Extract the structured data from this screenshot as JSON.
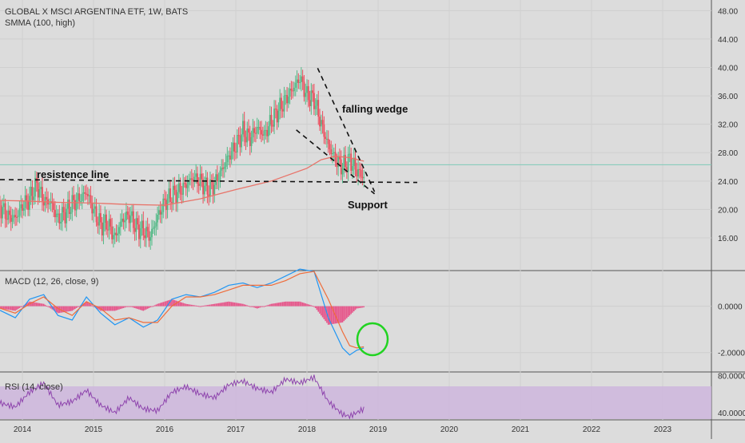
{
  "header": {
    "symbol": "GLOBAL X MSCI ARGENTINA ETF, 1W, BATS",
    "study": "SMMA (100, high)"
  },
  "macd_panel": {
    "label": "MACD (12, 26, close, 9)"
  },
  "rsi_panel": {
    "label": "RSI (14, close)"
  },
  "annotations": {
    "wedge": "falling wedge",
    "resistance": "resistence line",
    "support": "Support"
  },
  "colors": {
    "background": "#dcdcdc",
    "up_candle": "#53b987",
    "down_candle": "#eb4d5c",
    "smma": "#e8746a",
    "macd_line": "#2196f3",
    "signal_line": "#ef6c3a",
    "histogram": "#e6558a",
    "rsi_line": "#8e44ad",
    "rsi_band": "#cdb4dd",
    "trendline": "#111111",
    "circle": "#22d322",
    "price_line": "#7fc9b8"
  },
  "chart_data": [
    {
      "type": "candlestick",
      "panel": "price",
      "x_ticks": [
        "2014",
        "2015",
        "2016",
        "2017",
        "2018",
        "2019",
        "2020",
        "2021",
        "2022",
        "2023"
      ],
      "y_ticks": [
        "16.00",
        "20.00",
        "24.00",
        "28.00",
        "32.00",
        "36.00",
        "40.00",
        "44.00",
        "48.00"
      ],
      "ylim": [
        11.5,
        49.5
      ],
      "series": [
        {
          "kind": "close",
          "x": [
            2013.5,
            2013.6,
            2013.7,
            2013.8,
            2013.9,
            2014.0,
            2014.1,
            2014.2,
            2014.3,
            2014.4,
            2014.5,
            2014.6,
            2014.7,
            2014.8,
            2014.9,
            2015.0,
            2015.1,
            2015.2,
            2015.3,
            2015.4,
            2015.5,
            2015.6,
            2015.7,
            2015.8,
            2015.9,
            2016.0,
            2016.1,
            2016.2,
            2016.3,
            2016.4,
            2016.5,
            2016.6,
            2016.7,
            2016.8,
            2016.9,
            2017.0,
            2017.1,
            2017.2,
            2017.3,
            2017.4,
            2017.5,
            2017.6,
            2017.7,
            2017.8,
            2017.9,
            2018.0,
            2018.1,
            2018.2,
            2018.3,
            2018.4,
            2018.5,
            2018.6,
            2018.7,
            2018.8
          ],
          "values": [
            21.5,
            21.0,
            20.2,
            19.0,
            18.8,
            20.5,
            21.5,
            23.5,
            21.2,
            21.0,
            18.6,
            19.5,
            20.8,
            21.5,
            22.5,
            19.8,
            17.8,
            18.0,
            16.0,
            18.5,
            19.2,
            17.5,
            17.0,
            16.2,
            19.0,
            21.0,
            22.0,
            22.5,
            23.5,
            24.5,
            24.0,
            22.8,
            23.5,
            25.5,
            27.5,
            29.0,
            31.0,
            30.0,
            31.5,
            30.5,
            32.5,
            34.0,
            35.5,
            37.0,
            38.5,
            36.0,
            35.5,
            32.0,
            29.0,
            27.0,
            26.0,
            27.0,
            25.5,
            24.5
          ]
        },
        {
          "kind": "smma",
          "name": "SMMA (100, high)",
          "x": [
            2013.5,
            2014.0,
            2014.5,
            2015.0,
            2015.5,
            2016.0,
            2016.5,
            2017.0,
            2017.5,
            2018.0,
            2018.2,
            2018.4,
            2018.6,
            2018.8
          ],
          "values": [
            21.3,
            21.2,
            21.0,
            20.9,
            20.7,
            20.6,
            21.5,
            22.8,
            24.0,
            25.8,
            27.0,
            27.5,
            27.3,
            26.8
          ]
        }
      ]
    },
    {
      "type": "line",
      "panel": "macd",
      "name": "MACD (12, 26, close, 9)",
      "y_ticks": [
        "0.0000",
        "-2.0000"
      ],
      "ylim": [
        -2.8,
        1.5
      ],
      "x": [
        2013.5,
        2013.7,
        2013.9,
        2014.1,
        2014.3,
        2014.5,
        2014.7,
        2014.9,
        2015.1,
        2015.3,
        2015.5,
        2015.7,
        2015.9,
        2016.1,
        2016.3,
        2016.5,
        2016.7,
        2016.9,
        2017.1,
        2017.3,
        2017.5,
        2017.7,
        2017.9,
        2018.1,
        2018.3,
        2018.5,
        2018.6,
        2018.7,
        2018.8
      ],
      "series": [
        {
          "name": "MACD",
          "values": [
            0.1,
            -0.2,
            -0.5,
            0.3,
            0.5,
            -0.4,
            -0.6,
            0.4,
            -0.3,
            -0.8,
            -0.5,
            -0.9,
            -0.6,
            0.3,
            0.5,
            0.4,
            0.6,
            0.9,
            1.0,
            0.8,
            1.0,
            1.3,
            1.6,
            1.5,
            -0.5,
            -1.8,
            -2.1,
            -1.9,
            -1.8
          ]
        },
        {
          "name": "Signal",
          "values": [
            0.1,
            -0.1,
            -0.3,
            0.1,
            0.4,
            -0.1,
            -0.4,
            0.2,
            -0.1,
            -0.6,
            -0.5,
            -0.7,
            -0.7,
            0.0,
            0.4,
            0.4,
            0.5,
            0.7,
            0.9,
            0.9,
            0.9,
            1.1,
            1.4,
            1.5,
            0.3,
            -1.1,
            -1.7,
            -1.8,
            -1.75
          ]
        }
      ]
    },
    {
      "type": "line",
      "panel": "rsi",
      "name": "RSI (14, close)",
      "y_ticks": [
        "80.0000",
        "40.0000"
      ],
      "ylim": [
        33,
        83
      ],
      "band": [
        70,
        30
      ],
      "x": [
        2013.5,
        2013.7,
        2013.9,
        2014.1,
        2014.3,
        2014.5,
        2014.7,
        2014.9,
        2015.1,
        2015.3,
        2015.5,
        2015.7,
        2015.9,
        2016.1,
        2016.3,
        2016.5,
        2016.7,
        2016.9,
        2017.1,
        2017.3,
        2017.5,
        2017.7,
        2017.9,
        2018.1,
        2018.3,
        2018.5,
        2018.6,
        2018.7,
        2018.8
      ],
      "values": [
        58,
        50,
        46,
        62,
        72,
        48,
        52,
        64,
        48,
        40,
        56,
        44,
        42,
        62,
        68,
        60,
        56,
        70,
        74,
        66,
        62,
        76,
        72,
        78,
        52,
        38,
        36,
        40,
        44
      ]
    }
  ]
}
